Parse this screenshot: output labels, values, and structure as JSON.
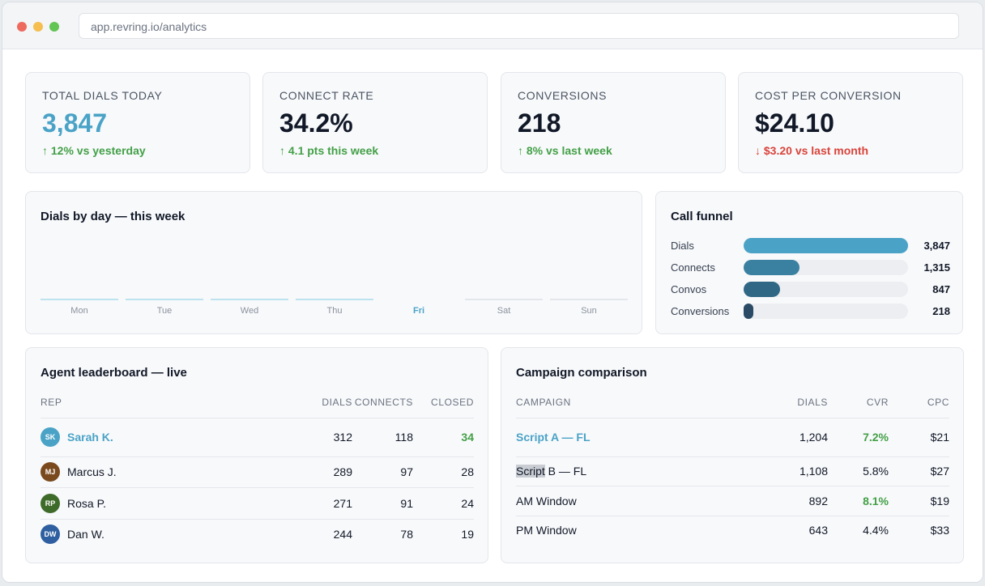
{
  "browser": {
    "url": "app.revring.io/analytics"
  },
  "kpis": [
    {
      "label": "TOTAL DIALS TODAY",
      "value": "3,847",
      "delta": "↑ 12% vs yesterday",
      "trend": "up"
    },
    {
      "label": "CONNECT RATE",
      "value": "34.2%",
      "delta": "↑ 4.1 pts this week",
      "trend": "up"
    },
    {
      "label": "CONVERSIONS",
      "value": "218",
      "delta": "↑ 8% vs last week",
      "trend": "up"
    },
    {
      "label": "COST PER CONVERSION",
      "value": "$24.10",
      "delta": "↓ $3.20 vs last month",
      "trend": "down"
    }
  ],
  "dials_chart": {
    "title": "Dials by day — this week",
    "days": [
      "Mon",
      "Tue",
      "Wed",
      "Thu",
      "Fri",
      "Sat",
      "Sun"
    ],
    "today": "Fri"
  },
  "funnel": {
    "title": "Call funnel",
    "stages": [
      {
        "label": "Dials",
        "value": "3,847",
        "count": 3847,
        "color": "#4aa3c7"
      },
      {
        "label": "Connects",
        "value": "1,315",
        "count": 1315,
        "color": "#3a80a0"
      },
      {
        "label": "Convos",
        "value": "847",
        "count": 847,
        "color": "#2f6784"
      },
      {
        "label": "Conversions",
        "value": "218",
        "count": 218,
        "color": "#2a4a66"
      }
    ]
  },
  "leaderboard": {
    "title": "Agent leaderboard — live",
    "columns": [
      "REP",
      "DIALS",
      "CONNECTS",
      "CLOSED"
    ],
    "rows": [
      {
        "initials": "SK",
        "name": "Sarah K.",
        "dials": "312",
        "connects": "118",
        "closed": "34",
        "avatar_color": "#4aa3c7"
      },
      {
        "initials": "MJ",
        "name": "Marcus J.",
        "dials": "289",
        "connects": "97",
        "closed": "28",
        "avatar_color": "#7a4a1e"
      },
      {
        "initials": "RP",
        "name": "Rosa P.",
        "dials": "271",
        "connects": "91",
        "closed": "24",
        "avatar_color": "#3f6b2a"
      },
      {
        "initials": "DW",
        "name": "Dan W.",
        "dials": "244",
        "connects": "78",
        "closed": "19",
        "avatar_color": "#2f5fa0"
      }
    ]
  },
  "campaigns": {
    "title": "Campaign comparison",
    "columns": [
      "CAMPAIGN",
      "DIALS",
      "CVR",
      "CPC"
    ],
    "rows": [
      {
        "name": "Script A — FL",
        "dials": "1,204",
        "cvr": "7.2%",
        "cpc": "$21",
        "cvr_good": true
      },
      {
        "name_selected": "Script",
        "name_rest": " B — FL",
        "dials": "1,108",
        "cvr": "5.8%",
        "cpc": "$27",
        "cvr_good": false
      },
      {
        "name": "AM Window",
        "dials": "892",
        "cvr": "8.1%",
        "cpc": "$19",
        "cvr_good": true
      },
      {
        "name": "PM Window",
        "dials": "643",
        "cvr": "4.4%",
        "cpc": "$33",
        "cvr_good": false
      }
    ]
  }
}
